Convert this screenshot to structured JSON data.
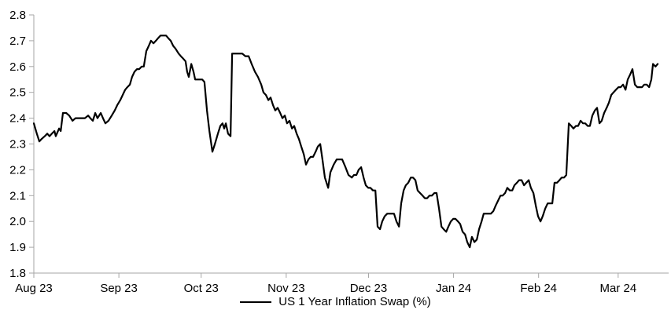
{
  "legend": {
    "label": "US 1 Year Inflation Swap (%)"
  },
  "chart_data": {
    "type": "line",
    "title": "",
    "xlabel": "",
    "ylabel": "",
    "ylim": [
      1.8,
      2.8
    ],
    "y_tick_labels": [
      "2.8",
      "2.7",
      "2.6",
      "2.5",
      "2.4",
      "2.3",
      "2.2",
      "2.1",
      "2.0",
      "1.9",
      "1.8"
    ],
    "x_unit": "days since 2023-08-01",
    "x_domain_days": [
      0,
      231.4
    ],
    "x_ticks": [
      {
        "label": "Aug 23",
        "day": 0
      },
      {
        "label": "Sep 23",
        "day": 31
      },
      {
        "label": "Oct 23",
        "day": 61
      },
      {
        "label": "Nov 23",
        "day": 92
      },
      {
        "label": "Dec 23",
        "day": 122
      },
      {
        "label": "Jan 24",
        "day": 153
      },
      {
        "label": "Feb 24",
        "day": 184
      },
      {
        "label": "Mar 24",
        "day": 213
      }
    ],
    "grid": false,
    "legend_position": "bottom-center",
    "colors": {
      "background": "#ffffff",
      "axis": "#a6a6a6",
      "text": "#000000",
      "line": "#000000"
    },
    "series": [
      {
        "name": "US 1 Year Inflation Swap (%)",
        "color": "#000000",
        "points": [
          [
            0,
            2.38
          ],
          [
            1.1,
            2.34
          ],
          [
            2,
            2.31
          ],
          [
            2.9,
            2.32
          ],
          [
            4,
            2.33
          ],
          [
            4.9,
            2.34
          ],
          [
            5.7,
            2.33
          ],
          [
            6.6,
            2.34
          ],
          [
            7.5,
            2.35
          ],
          [
            8,
            2.33
          ],
          [
            9.2,
            2.36
          ],
          [
            9.8,
            2.35
          ],
          [
            10.6,
            2.42
          ],
          [
            11.8,
            2.42
          ],
          [
            12.9,
            2.41
          ],
          [
            14.1,
            2.39
          ],
          [
            15.2,
            2.4
          ],
          [
            16.3,
            2.4
          ],
          [
            17.5,
            2.4
          ],
          [
            18.6,
            2.4
          ],
          [
            19.8,
            2.41
          ],
          [
            20.6,
            2.4
          ],
          [
            21.5,
            2.39
          ],
          [
            22.4,
            2.42
          ],
          [
            23.2,
            2.4
          ],
          [
            24.4,
            2.42
          ],
          [
            25.2,
            2.4
          ],
          [
            26.1,
            2.38
          ],
          [
            27.2,
            2.39
          ],
          [
            28.4,
            2.41
          ],
          [
            29.5,
            2.43
          ],
          [
            30.4,
            2.45
          ],
          [
            31.5,
            2.47
          ],
          [
            32.4,
            2.49
          ],
          [
            33.3,
            2.51
          ],
          [
            34.1,
            2.52
          ],
          [
            35,
            2.53
          ],
          [
            35.8,
            2.56
          ],
          [
            36.7,
            2.58
          ],
          [
            37.6,
            2.59
          ],
          [
            38.4,
            2.59
          ],
          [
            39.3,
            2.6
          ],
          [
            40.1,
            2.6
          ],
          [
            41,
            2.66
          ],
          [
            41.9,
            2.68
          ],
          [
            42.7,
            2.7
          ],
          [
            43.6,
            2.69
          ],
          [
            44.5,
            2.7
          ],
          [
            45.3,
            2.71
          ],
          [
            46.2,
            2.72
          ],
          [
            47.3,
            2.72
          ],
          [
            48.2,
            2.72
          ],
          [
            49,
            2.71
          ],
          [
            49.9,
            2.7
          ],
          [
            50.8,
            2.68
          ],
          [
            51.6,
            2.67
          ],
          [
            52.8,
            2.65
          ],
          [
            53.6,
            2.64
          ],
          [
            54.5,
            2.63
          ],
          [
            55.3,
            2.62
          ],
          [
            55.9,
            2.58
          ],
          [
            56.5,
            2.56
          ],
          [
            57.4,
            2.61
          ],
          [
            58.2,
            2.58
          ],
          [
            58.8,
            2.55
          ],
          [
            59.6,
            2.55
          ],
          [
            60.5,
            2.55
          ],
          [
            61.4,
            2.55
          ],
          [
            62.2,
            2.54
          ],
          [
            63.1,
            2.43
          ],
          [
            64,
            2.35
          ],
          [
            65.1,
            2.27
          ],
          [
            66,
            2.3
          ],
          [
            67.1,
            2.34
          ],
          [
            68,
            2.37
          ],
          [
            68.8,
            2.38
          ],
          [
            69.4,
            2.36
          ],
          [
            70,
            2.38
          ],
          [
            70.8,
            2.34
          ],
          [
            71.7,
            2.33
          ],
          [
            72.3,
            2.65
          ],
          [
            73.7,
            2.65
          ],
          [
            74.9,
            2.65
          ],
          [
            76,
            2.65
          ],
          [
            77.1,
            2.64
          ],
          [
            78.3,
            2.64
          ],
          [
            79.4,
            2.61
          ],
          [
            80.6,
            2.58
          ],
          [
            81.7,
            2.56
          ],
          [
            82.9,
            2.53
          ],
          [
            83.7,
            2.5
          ],
          [
            84.6,
            2.49
          ],
          [
            85.5,
            2.47
          ],
          [
            86.3,
            2.48
          ],
          [
            87.2,
            2.45
          ],
          [
            88,
            2.43
          ],
          [
            88.9,
            2.44
          ],
          [
            89.8,
            2.42
          ],
          [
            90.6,
            2.4
          ],
          [
            91.5,
            2.41
          ],
          [
            92.3,
            2.38
          ],
          [
            93.2,
            2.39
          ],
          [
            94.1,
            2.36
          ],
          [
            94.9,
            2.37
          ],
          [
            95.8,
            2.34
          ],
          [
            96.6,
            2.32
          ],
          [
            97.5,
            2.29
          ],
          [
            98.4,
            2.26
          ],
          [
            99.2,
            2.22
          ],
          [
            100.1,
            2.24
          ],
          [
            100.9,
            2.25
          ],
          [
            101.8,
            2.25
          ],
          [
            102.7,
            2.27
          ],
          [
            103.5,
            2.29
          ],
          [
            104.4,
            2.3
          ],
          [
            105.2,
            2.24
          ],
          [
            106.1,
            2.17
          ],
          [
            107.3,
            2.13
          ],
          [
            108.1,
            2.19
          ],
          [
            109.3,
            2.22
          ],
          [
            110.4,
            2.24
          ],
          [
            111.6,
            2.24
          ],
          [
            112.4,
            2.24
          ],
          [
            113.6,
            2.21
          ],
          [
            114.7,
            2.18
          ],
          [
            115.9,
            2.17
          ],
          [
            116.7,
            2.18
          ],
          [
            117.6,
            2.18
          ],
          [
            118.4,
            2.2
          ],
          [
            119.3,
            2.21
          ],
          [
            120.2,
            2.17
          ],
          [
            121,
            2.14
          ],
          [
            121.9,
            2.13
          ],
          [
            122.7,
            2.13
          ],
          [
            123.6,
            2.12
          ],
          [
            124.5,
            2.12
          ],
          [
            125.3,
            1.98
          ],
          [
            126.2,
            1.97
          ],
          [
            127,
            2.0
          ],
          [
            127.9,
            2.02
          ],
          [
            128.8,
            2.03
          ],
          [
            129.6,
            2.03
          ],
          [
            130.5,
            2.03
          ],
          [
            131.3,
            2.03
          ],
          [
            132.2,
            2.0
          ],
          [
            133.1,
            1.98
          ],
          [
            133.9,
            2.07
          ],
          [
            134.8,
            2.12
          ],
          [
            135.6,
            2.14
          ],
          [
            136.5,
            2.15
          ],
          [
            137.4,
            2.17
          ],
          [
            138.2,
            2.17
          ],
          [
            139.1,
            2.16
          ],
          [
            139.9,
            2.12
          ],
          [
            140.8,
            2.11
          ],
          [
            141.7,
            2.1
          ],
          [
            142.5,
            2.09
          ],
          [
            143.4,
            2.09
          ],
          [
            144.2,
            2.1
          ],
          [
            145.1,
            2.1
          ],
          [
            146,
            2.11
          ],
          [
            146.8,
            2.11
          ],
          [
            147.7,
            2.05
          ],
          [
            148.6,
            1.98
          ],
          [
            149.4,
            1.97
          ],
          [
            150.3,
            1.96
          ],
          [
            151.1,
            1.98
          ],
          [
            152,
            2.0
          ],
          [
            152.9,
            2.01
          ],
          [
            153.7,
            2.01
          ],
          [
            154.6,
            2.0
          ],
          [
            155.4,
            1.99
          ],
          [
            156.3,
            1.96
          ],
          [
            157.2,
            1.95
          ],
          [
            158,
            1.92
          ],
          [
            158.9,
            1.9
          ],
          [
            159.7,
            1.94
          ],
          [
            160.6,
            1.92
          ],
          [
            161.5,
            1.93
          ],
          [
            162.3,
            1.97
          ],
          [
            163.2,
            2.0
          ],
          [
            164,
            2.03
          ],
          [
            164.9,
            2.03
          ],
          [
            165.8,
            2.03
          ],
          [
            166.6,
            2.03
          ],
          [
            167.5,
            2.04
          ],
          [
            168.3,
            2.06
          ],
          [
            169.2,
            2.08
          ],
          [
            170.1,
            2.1
          ],
          [
            170.9,
            2.1
          ],
          [
            171.8,
            2.11
          ],
          [
            172.6,
            2.13
          ],
          [
            173.5,
            2.12
          ],
          [
            174.4,
            2.12
          ],
          [
            175.2,
            2.14
          ],
          [
            176.1,
            2.15
          ],
          [
            176.9,
            2.16
          ],
          [
            177.8,
            2.16
          ],
          [
            178.7,
            2.14
          ],
          [
            179.5,
            2.15
          ],
          [
            180.4,
            2.16
          ],
          [
            181.2,
            2.13
          ],
          [
            182.1,
            2.11
          ],
          [
            183,
            2.06
          ],
          [
            183.8,
            2.02
          ],
          [
            184.7,
            2.0
          ],
          [
            185.5,
            2.02
          ],
          [
            186.4,
            2.05
          ],
          [
            187.3,
            2.07
          ],
          [
            188.1,
            2.07
          ],
          [
            189,
            2.07
          ],
          [
            189.8,
            2.15
          ],
          [
            190.7,
            2.15
          ],
          [
            191.6,
            2.16
          ],
          [
            192.4,
            2.17
          ],
          [
            193.3,
            2.17
          ],
          [
            194.1,
            2.18
          ],
          [
            195,
            2.38
          ],
          [
            195.9,
            2.37
          ],
          [
            196.7,
            2.36
          ],
          [
            197.6,
            2.37
          ],
          [
            198.4,
            2.37
          ],
          [
            199.3,
            2.39
          ],
          [
            200.2,
            2.38
          ],
          [
            201,
            2.38
          ],
          [
            201.9,
            2.37
          ],
          [
            202.7,
            2.37
          ],
          [
            203.6,
            2.41
          ],
          [
            204.5,
            2.43
          ],
          [
            205.3,
            2.44
          ],
          [
            206.2,
            2.38
          ],
          [
            207,
            2.39
          ],
          [
            207.9,
            2.42
          ],
          [
            208.8,
            2.44
          ],
          [
            209.6,
            2.46
          ],
          [
            210.5,
            2.49
          ],
          [
            211.3,
            2.5
          ],
          [
            212.2,
            2.51
          ],
          [
            213.1,
            2.52
          ],
          [
            213.9,
            2.52
          ],
          [
            214.8,
            2.53
          ],
          [
            215.7,
            2.51
          ],
          [
            216.5,
            2.55
          ],
          [
            217.4,
            2.57
          ],
          [
            218.2,
            2.59
          ],
          [
            219.1,
            2.53
          ],
          [
            220,
            2.52
          ],
          [
            220.8,
            2.52
          ],
          [
            221.7,
            2.52
          ],
          [
            222.5,
            2.53
          ],
          [
            223.4,
            2.53
          ],
          [
            224.3,
            2.52
          ],
          [
            225.1,
            2.55
          ],
          [
            225.7,
            2.61
          ],
          [
            226.6,
            2.6
          ],
          [
            227.4,
            2.61
          ]
        ]
      }
    ]
  }
}
